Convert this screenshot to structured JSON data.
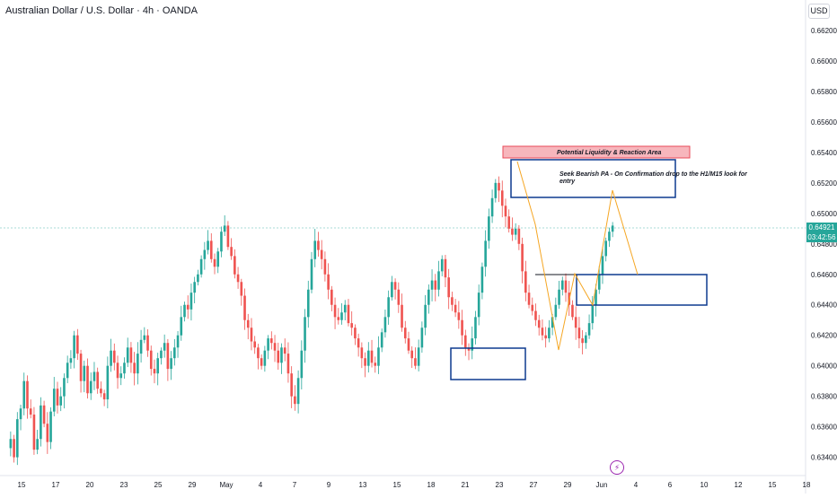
{
  "header": {
    "title": "Australian Dollar / U.S. Dollar · 4h · OANDA",
    "currency": "USD"
  },
  "last_price": {
    "value": "0.64921",
    "countdown": "03:42:56"
  },
  "chart_data": {
    "type": "candlestick",
    "title": "Australian Dollar / U.S. Dollar · 4h · OANDA",
    "y_ticks": [
      "0.66200",
      "0.66000",
      "0.65800",
      "0.65600",
      "0.65400",
      "0.65200",
      "0.65000",
      "0.64800",
      "0.64600",
      "0.64400",
      "0.64200",
      "0.64000",
      "0.63800",
      "0.63600",
      "0.63400"
    ],
    "y_tick_values": [
      0.662,
      0.66,
      0.658,
      0.656,
      0.654,
      0.652,
      0.65,
      0.648,
      0.646,
      0.644,
      0.642,
      0.64,
      0.638,
      0.636,
      0.634
    ],
    "ylim": [
      0.6328,
      0.664
    ],
    "x_ticks": [
      "15",
      "17",
      "20",
      "23",
      "25",
      "29",
      "May",
      "4",
      "7",
      "9",
      "13",
      "15",
      "18",
      "21",
      "23",
      "27",
      "29",
      "Jun",
      "4",
      "6",
      "10",
      "12",
      "15",
      "18"
    ],
    "colors": {
      "up": "#26a69a",
      "down": "#ef5350",
      "annotation_box": "#0d3a8f",
      "zone": "#f7b6bc",
      "path": "#f5a623"
    },
    "series_close": [
      0.6352,
      0.634,
      0.6365,
      0.6372,
      0.639,
      0.6372,
      0.6368,
      0.6345,
      0.6352,
      0.6374,
      0.6362,
      0.635,
      0.637,
      0.6385,
      0.6374,
      0.638,
      0.6392,
      0.6402,
      0.6405,
      0.642,
      0.6408,
      0.639,
      0.64,
      0.6382,
      0.639,
      0.6396,
      0.6385,
      0.6382,
      0.6378,
      0.64,
      0.641,
      0.6402,
      0.6392,
      0.6395,
      0.6402,
      0.6412,
      0.6402,
      0.6395,
      0.6408,
      0.6417,
      0.642,
      0.641,
      0.6398,
      0.6395,
      0.6405,
      0.641,
      0.6415,
      0.6398,
      0.6405,
      0.6412,
      0.642,
      0.6432,
      0.644,
      0.6437,
      0.6448,
      0.6455,
      0.646,
      0.647,
      0.6476,
      0.6482,
      0.647,
      0.6465,
      0.6475,
      0.6488,
      0.6492,
      0.6478,
      0.6472,
      0.646,
      0.6455,
      0.6446,
      0.643,
      0.6425,
      0.6416,
      0.6412,
      0.6405,
      0.64,
      0.641,
      0.6418,
      0.6415,
      0.641,
      0.6402,
      0.6412,
      0.6408,
      0.6395,
      0.638,
      0.6375,
      0.6392,
      0.641,
      0.6432,
      0.645,
      0.647,
      0.6482,
      0.6476,
      0.647,
      0.646,
      0.645,
      0.644,
      0.6432,
      0.643,
      0.6435,
      0.644,
      0.6428,
      0.6425,
      0.6418,
      0.6412,
      0.6405,
      0.64,
      0.641,
      0.6402,
      0.64,
      0.6412,
      0.6422,
      0.6432,
      0.6445,
      0.6455,
      0.645,
      0.644,
      0.6425,
      0.6418,
      0.641,
      0.6405,
      0.64,
      0.6412,
      0.6425,
      0.644,
      0.645,
      0.6456,
      0.645,
      0.6462,
      0.647,
      0.6458,
      0.6445,
      0.644,
      0.6435,
      0.643,
      0.642,
      0.6412,
      0.641,
      0.6418,
      0.6432,
      0.6448,
      0.6465,
      0.6482,
      0.6498,
      0.651,
      0.652,
      0.6515,
      0.6505,
      0.6498,
      0.649,
      0.6486,
      0.649,
      0.648,
      0.6462,
      0.6448,
      0.644,
      0.6436,
      0.643,
      0.6425,
      0.642,
      0.6418,
      0.6425,
      0.6432,
      0.644,
      0.645,
      0.6456,
      0.6448,
      0.644,
      0.6432,
      0.6425,
      0.6418,
      0.6415,
      0.642,
      0.6428,
      0.644,
      0.645,
      0.646,
      0.6472,
      0.6482,
      0.6488,
      0.6492
    ],
    "annotations": [
      {
        "type": "text",
        "text": "Potential Liquidity & Reaction Area"
      },
      {
        "type": "text",
        "text": "Seek Bearish PA - On Confirmation drop to the H1/M15 look for entry"
      },
      {
        "type": "box",
        "name": "supply-zone",
        "y": [
          0.6514,
          0.6538
        ]
      },
      {
        "type": "box",
        "name": "demand-zone-right",
        "y": [
          0.6443,
          0.6461
        ]
      },
      {
        "type": "box",
        "name": "demand-zone-left",
        "y": [
          0.6393,
          0.6412
        ]
      }
    ]
  }
}
